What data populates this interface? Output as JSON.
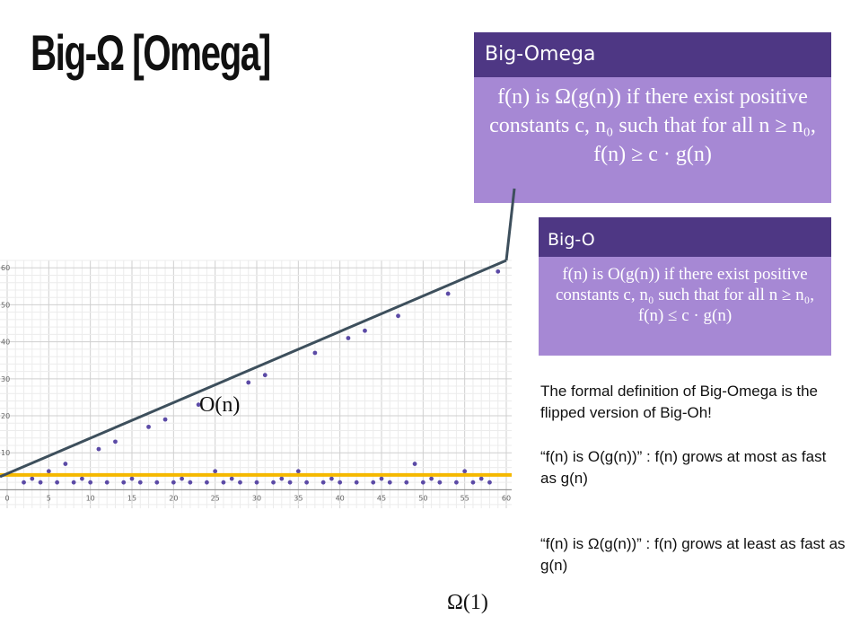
{
  "title": "Big-Ω [Omega]",
  "omega_box": {
    "heading": "Big-Omega",
    "line1": "f(n) is Ω(g(n)) if there exist positive",
    "line2": "constants c, n₀ such that for all n ≥ n₀,",
    "line3": "f(n) ≥ c · g(n)"
  },
  "bigo_box": {
    "heading": "Big-O",
    "line1": "f(n) is O(g(n)) if there exist positive",
    "line2": "constants c, n₀ such that for all n ≥ n₀,",
    "line3": "f(n) ≤ c · g(n)"
  },
  "text": {
    "p1": "The formal definition of Big-Omega is the flipped version of Big-Oh!",
    "p2": "“f(n) is O(g(n))” : f(n) grows at most as fast as g(n)",
    "p3": "“f(n) is Ω(g(n))” : f(n) grows at least as fast as g(n)"
  },
  "labels": {
    "on": "O(n)",
    "omega1": "Ω(1)"
  },
  "colors": {
    "box_header": "#4e3784",
    "box_body": "#a688d4",
    "line_on": "#3d4f5c",
    "line_omega1": "#f5b800",
    "dots": "#5b4aa6"
  },
  "chart_data": {
    "type": "scatter",
    "xlim": [
      0,
      60
    ],
    "ylim": [
      -5,
      62
    ],
    "x_ticks": [
      0,
      5,
      10,
      15,
      20,
      25,
      30,
      35,
      40,
      45,
      50,
      55,
      60
    ],
    "y_ticks": [
      10,
      20,
      30,
      40,
      50,
      60
    ],
    "grid": true,
    "series": [
      {
        "points": [
          [
            2,
            2
          ],
          [
            3,
            3
          ],
          [
            4,
            2
          ],
          [
            5,
            5
          ],
          [
            6,
            2
          ],
          [
            7,
            7
          ],
          [
            8,
            2
          ],
          [
            9,
            3
          ],
          [
            10,
            2
          ],
          [
            11,
            11
          ],
          [
            12,
            2
          ],
          [
            13,
            13
          ],
          [
            14,
            2
          ],
          [
            15,
            3
          ],
          [
            16,
            2
          ],
          [
            17,
            17
          ],
          [
            18,
            2
          ],
          [
            19,
            19
          ],
          [
            20,
            2
          ],
          [
            21,
            3
          ],
          [
            22,
            2
          ],
          [
            23,
            23
          ],
          [
            24,
            2
          ],
          [
            25,
            5
          ],
          [
            26,
            2
          ],
          [
            27,
            3
          ],
          [
            28,
            2
          ],
          [
            29,
            29
          ],
          [
            30,
            2
          ],
          [
            31,
            31
          ],
          [
            32,
            2
          ],
          [
            33,
            3
          ],
          [
            34,
            2
          ],
          [
            35,
            5
          ],
          [
            36,
            2
          ],
          [
            37,
            37
          ],
          [
            38,
            2
          ],
          [
            39,
            3
          ],
          [
            40,
            2
          ],
          [
            41,
            41
          ],
          [
            42,
            2
          ],
          [
            43,
            43
          ],
          [
            44,
            2
          ],
          [
            45,
            3
          ],
          [
            46,
            2
          ],
          [
            47,
            47
          ],
          [
            48,
            2
          ],
          [
            49,
            7
          ],
          [
            50,
            2
          ],
          [
            51,
            3
          ],
          [
            52,
            2
          ],
          [
            53,
            53
          ],
          [
            54,
            2
          ],
          [
            55,
            5
          ],
          [
            56,
            2
          ],
          [
            57,
            3
          ],
          [
            58,
            2
          ],
          [
            59,
            59
          ]
        ]
      }
    ],
    "lines": [
      {
        "from": [
          0,
          4
        ],
        "to": [
          60,
          62
        ]
      },
      {
        "from": [
          0,
          4
        ],
        "to": [
          60,
          4
        ]
      }
    ]
  }
}
